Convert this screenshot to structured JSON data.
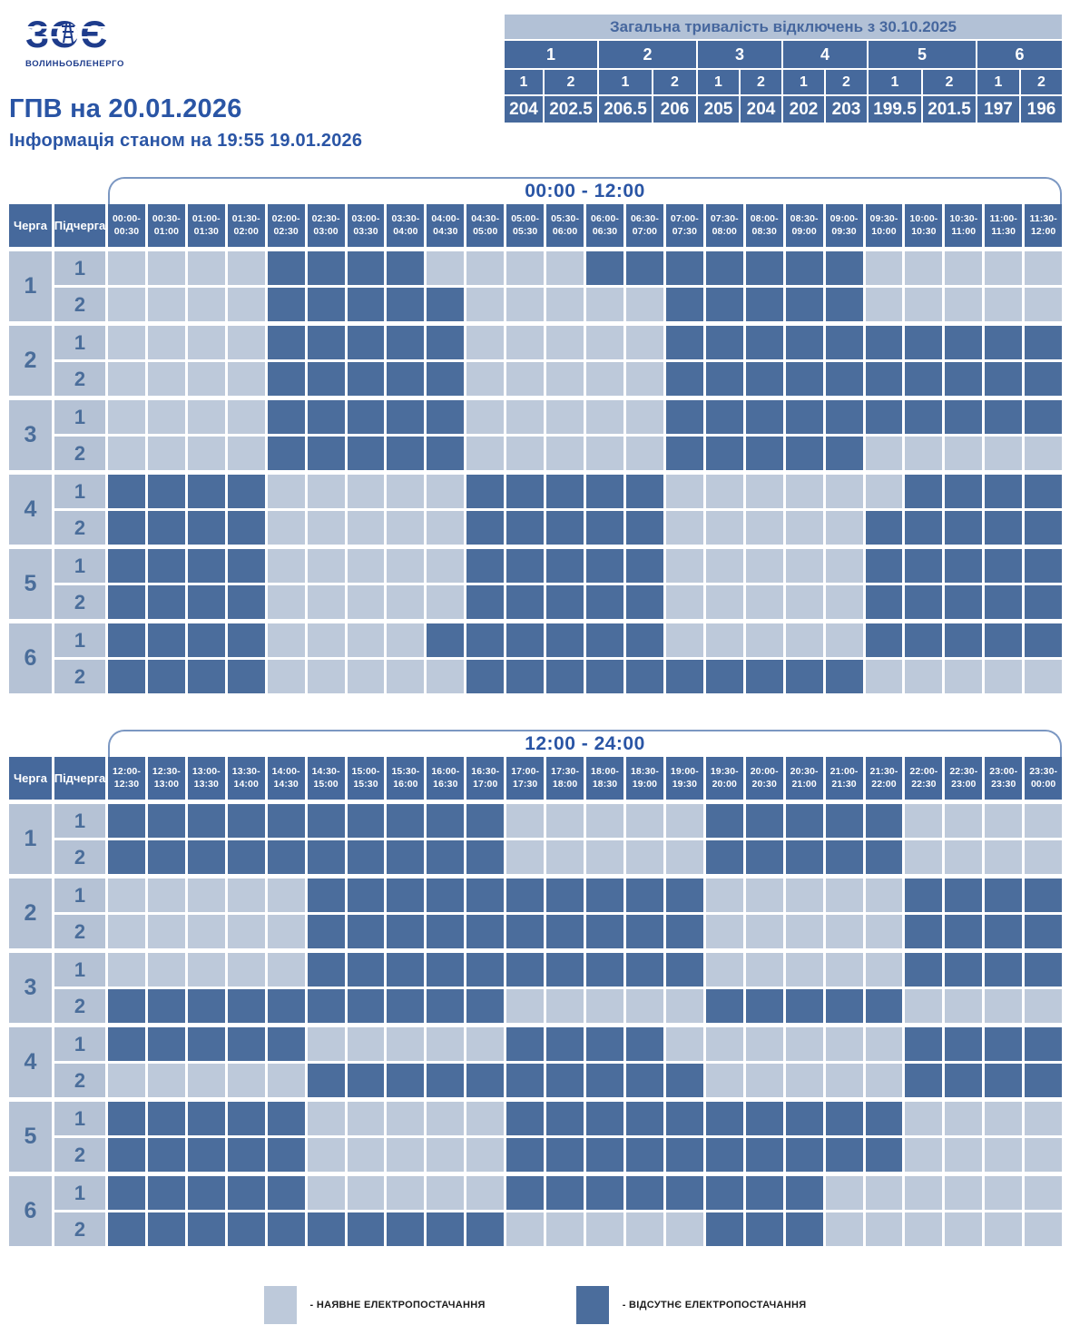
{
  "logo": {
    "mark": "ЗОЄ",
    "company": "ВОЛИНЬОБЛЕНЕРГО"
  },
  "header": {
    "title": "ГПВ на 20.01.2026",
    "subtitle": "Інформація станом на 19:55 19.01.2026"
  },
  "summary": {
    "title": "Загальна тривалість відключень з 30.10.2025",
    "groups": [
      "1",
      "2",
      "3",
      "4",
      "5",
      "6"
    ],
    "subgroups": [
      "1",
      "2",
      "1",
      "2",
      "1",
      "2",
      "1",
      "2",
      "1",
      "2",
      "1",
      "2"
    ],
    "values": [
      "204",
      "202.5",
      "206.5",
      "206",
      "205",
      "204",
      "202",
      "203",
      "199.5",
      "201.5",
      "197",
      "196"
    ]
  },
  "schedule": {
    "queue_header": "Черга",
    "subqueue_header": "Підчерга",
    "tables": [
      {
        "period": "00:00 - 12:00",
        "slots": [
          [
            "00:00",
            "00:30"
          ],
          [
            "00:30",
            "01:00"
          ],
          [
            "01:00",
            "01:30"
          ],
          [
            "01:30",
            "02:00"
          ],
          [
            "02:00",
            "02:30"
          ],
          [
            "02:30",
            "03:00"
          ],
          [
            "03:00",
            "03:30"
          ],
          [
            "03:30",
            "04:00"
          ],
          [
            "04:00",
            "04:30"
          ],
          [
            "04:30",
            "05:00"
          ],
          [
            "05:00",
            "05:30"
          ],
          [
            "05:30",
            "06:00"
          ],
          [
            "06:00",
            "06:30"
          ],
          [
            "06:30",
            "07:00"
          ],
          [
            "07:00",
            "07:30"
          ],
          [
            "07:30",
            "08:00"
          ],
          [
            "08:00",
            "08:30"
          ],
          [
            "08:30",
            "09:00"
          ],
          [
            "09:00",
            "09:30"
          ],
          [
            "09:30",
            "10:00"
          ],
          [
            "10:00",
            "10:30"
          ],
          [
            "10:30",
            "11:00"
          ],
          [
            "11:00",
            "11:30"
          ],
          [
            "11:30",
            "12:00"
          ]
        ],
        "rows": [
          {
            "queue": "1",
            "sub": "1",
            "cells": [
              0,
              0,
              0,
              0,
              1,
              1,
              1,
              1,
              0,
              0,
              0,
              0,
              1,
              1,
              1,
              1,
              1,
              1,
              1,
              0,
              0,
              0,
              0,
              0
            ]
          },
          {
            "queue": "1",
            "sub": "2",
            "cells": [
              0,
              0,
              0,
              0,
              1,
              1,
              1,
              1,
              1,
              0,
              0,
              0,
              0,
              0,
              1,
              1,
              1,
              1,
              1,
              0,
              0,
              0,
              0,
              0
            ]
          },
          {
            "queue": "2",
            "sub": "1",
            "cells": [
              0,
              0,
              0,
              0,
              1,
              1,
              1,
              1,
              1,
              0,
              0,
              0,
              0,
              0,
              1,
              1,
              1,
              1,
              1,
              1,
              1,
              1,
              1,
              1
            ]
          },
          {
            "queue": "2",
            "sub": "2",
            "cells": [
              0,
              0,
              0,
              0,
              1,
              1,
              1,
              1,
              1,
              0,
              0,
              0,
              0,
              0,
              1,
              1,
              1,
              1,
              1,
              1,
              1,
              1,
              1,
              1
            ]
          },
          {
            "queue": "3",
            "sub": "1",
            "cells": [
              0,
              0,
              0,
              0,
              1,
              1,
              1,
              1,
              1,
              0,
              0,
              0,
              0,
              0,
              1,
              1,
              1,
              1,
              1,
              1,
              1,
              1,
              1,
              1
            ]
          },
          {
            "queue": "3",
            "sub": "2",
            "cells": [
              0,
              0,
              0,
              0,
              1,
              1,
              1,
              1,
              1,
              0,
              0,
              0,
              0,
              0,
              1,
              1,
              1,
              1,
              1,
              0,
              0,
              0,
              0,
              0
            ]
          },
          {
            "queue": "4",
            "sub": "1",
            "cells": [
              1,
              1,
              1,
              1,
              0,
              0,
              0,
              0,
              0,
              1,
              1,
              1,
              1,
              1,
              0,
              0,
              0,
              0,
              0,
              0,
              1,
              1,
              1,
              1
            ]
          },
          {
            "queue": "4",
            "sub": "2",
            "cells": [
              1,
              1,
              1,
              1,
              0,
              0,
              0,
              0,
              0,
              1,
              1,
              1,
              1,
              1,
              0,
              0,
              0,
              0,
              0,
              1,
              1,
              1,
              1,
              1
            ]
          },
          {
            "queue": "5",
            "sub": "1",
            "cells": [
              1,
              1,
              1,
              1,
              0,
              0,
              0,
              0,
              0,
              1,
              1,
              1,
              1,
              1,
              0,
              0,
              0,
              0,
              0,
              1,
              1,
              1,
              1,
              1
            ]
          },
          {
            "queue": "5",
            "sub": "2",
            "cells": [
              1,
              1,
              1,
              1,
              0,
              0,
              0,
              0,
              0,
              1,
              1,
              1,
              1,
              1,
              0,
              0,
              0,
              0,
              0,
              1,
              1,
              1,
              1,
              1
            ]
          },
          {
            "queue": "6",
            "sub": "1",
            "cells": [
              1,
              1,
              1,
              1,
              0,
              0,
              0,
              0,
              1,
              1,
              1,
              1,
              1,
              1,
              0,
              0,
              0,
              0,
              0,
              1,
              1,
              1,
              1,
              1
            ]
          },
          {
            "queue": "6",
            "sub": "2",
            "cells": [
              1,
              1,
              1,
              1,
              0,
              0,
              0,
              0,
              0,
              1,
              1,
              1,
              1,
              1,
              1,
              1,
              1,
              1,
              1,
              0,
              0,
              0,
              0,
              0
            ]
          }
        ]
      },
      {
        "period": "12:00 - 24:00",
        "slots": [
          [
            "12:00",
            "12:30"
          ],
          [
            "12:30",
            "13:00"
          ],
          [
            "13:00",
            "13:30"
          ],
          [
            "13:30",
            "14:00"
          ],
          [
            "14:00",
            "14:30"
          ],
          [
            "14:30",
            "15:00"
          ],
          [
            "15:00",
            "15:30"
          ],
          [
            "15:30",
            "16:00"
          ],
          [
            "16:00",
            "16:30"
          ],
          [
            "16:30",
            "17:00"
          ],
          [
            "17:00",
            "17:30"
          ],
          [
            "17:30",
            "18:00"
          ],
          [
            "18:00",
            "18:30"
          ],
          [
            "18:30",
            "19:00"
          ],
          [
            "19:00",
            "19:30"
          ],
          [
            "19:30",
            "20:00"
          ],
          [
            "20:00",
            "20:30"
          ],
          [
            "20:30",
            "21:00"
          ],
          [
            "21:00",
            "21:30"
          ],
          [
            "21:30",
            "22:00"
          ],
          [
            "22:00",
            "22:30"
          ],
          [
            "22:30",
            "23:00"
          ],
          [
            "23:00",
            "23:30"
          ],
          [
            "23:30",
            "00:00"
          ]
        ],
        "rows": [
          {
            "queue": "1",
            "sub": "1",
            "cells": [
              1,
              1,
              1,
              1,
              1,
              1,
              1,
              1,
              1,
              1,
              0,
              0,
              0,
              0,
              0,
              1,
              1,
              1,
              1,
              1,
              0,
              0,
              0,
              0
            ]
          },
          {
            "queue": "1",
            "sub": "2",
            "cells": [
              1,
              1,
              1,
              1,
              1,
              1,
              1,
              1,
              1,
              1,
              0,
              0,
              0,
              0,
              0,
              1,
              1,
              1,
              1,
              1,
              0,
              0,
              0,
              0
            ]
          },
          {
            "queue": "2",
            "sub": "1",
            "cells": [
              0,
              0,
              0,
              0,
              0,
              1,
              1,
              1,
              1,
              1,
              1,
              1,
              1,
              1,
              1,
              0,
              0,
              0,
              0,
              0,
              1,
              1,
              1,
              1
            ]
          },
          {
            "queue": "2",
            "sub": "2",
            "cells": [
              0,
              0,
              0,
              0,
              0,
              1,
              1,
              1,
              1,
              1,
              1,
              1,
              1,
              1,
              1,
              0,
              0,
              0,
              0,
              0,
              1,
              1,
              1,
              1
            ]
          },
          {
            "queue": "3",
            "sub": "1",
            "cells": [
              0,
              0,
              0,
              0,
              0,
              1,
              1,
              1,
              1,
              1,
              1,
              1,
              1,
              1,
              1,
              0,
              0,
              0,
              0,
              0,
              1,
              1,
              1,
              1
            ]
          },
          {
            "queue": "3",
            "sub": "2",
            "cells": [
              1,
              1,
              1,
              1,
              1,
              1,
              1,
              1,
              1,
              1,
              0,
              0,
              0,
              0,
              0,
              1,
              1,
              1,
              1,
              1,
              0,
              0,
              0,
              0
            ]
          },
          {
            "queue": "4",
            "sub": "1",
            "cells": [
              1,
              1,
              1,
              1,
              1,
              0,
              0,
              0,
              0,
              0,
              1,
              1,
              1,
              1,
              0,
              0,
              0,
              0,
              0,
              0,
              1,
              1,
              1,
              1
            ]
          },
          {
            "queue": "4",
            "sub": "2",
            "cells": [
              0,
              0,
              0,
              0,
              0,
              1,
              1,
              1,
              1,
              1,
              1,
              1,
              1,
              1,
              1,
              0,
              0,
              0,
              0,
              0,
              1,
              1,
              1,
              1
            ]
          },
          {
            "queue": "5",
            "sub": "1",
            "cells": [
              1,
              1,
              1,
              1,
              1,
              0,
              0,
              0,
              0,
              0,
              1,
              1,
              1,
              1,
              1,
              1,
              1,
              1,
              1,
              1,
              0,
              0,
              0,
              0
            ]
          },
          {
            "queue": "5",
            "sub": "2",
            "cells": [
              1,
              1,
              1,
              1,
              1,
              0,
              0,
              0,
              0,
              0,
              1,
              1,
              1,
              1,
              1,
              1,
              1,
              1,
              1,
              1,
              0,
              0,
              0,
              0
            ]
          },
          {
            "queue": "6",
            "sub": "1",
            "cells": [
              1,
              1,
              1,
              1,
              1,
              0,
              0,
              0,
              0,
              0,
              1,
              1,
              1,
              1,
              1,
              1,
              1,
              1,
              0,
              0,
              0,
              0,
              0,
              0
            ]
          },
          {
            "queue": "6",
            "sub": "2",
            "cells": [
              1,
              1,
              1,
              1,
              1,
              1,
              1,
              1,
              1,
              1,
              0,
              0,
              0,
              0,
              0,
              1,
              1,
              1,
              0,
              0,
              0,
              0,
              0,
              0
            ]
          }
        ]
      }
    ]
  },
  "legend": {
    "available": "- НАЯВНЕ ЕЛЕКТРОПОСТАЧАННЯ",
    "absent": "- ВІДСУТНЄ ЕЛЕКТРОПОСТАЧАННЯ"
  },
  "colors": {
    "outage": "#4b6d9c",
    "supply": "#bdc9da",
    "header": "#46699c",
    "label_bg": "#b5c2d5",
    "accent_text": "#2a55a5",
    "logo_navy": "#1e3c8c",
    "summary_bar_bg": "#b2c1d6",
    "summary_bar_text": "#46679e",
    "bracket_line": "#7b97c2"
  }
}
